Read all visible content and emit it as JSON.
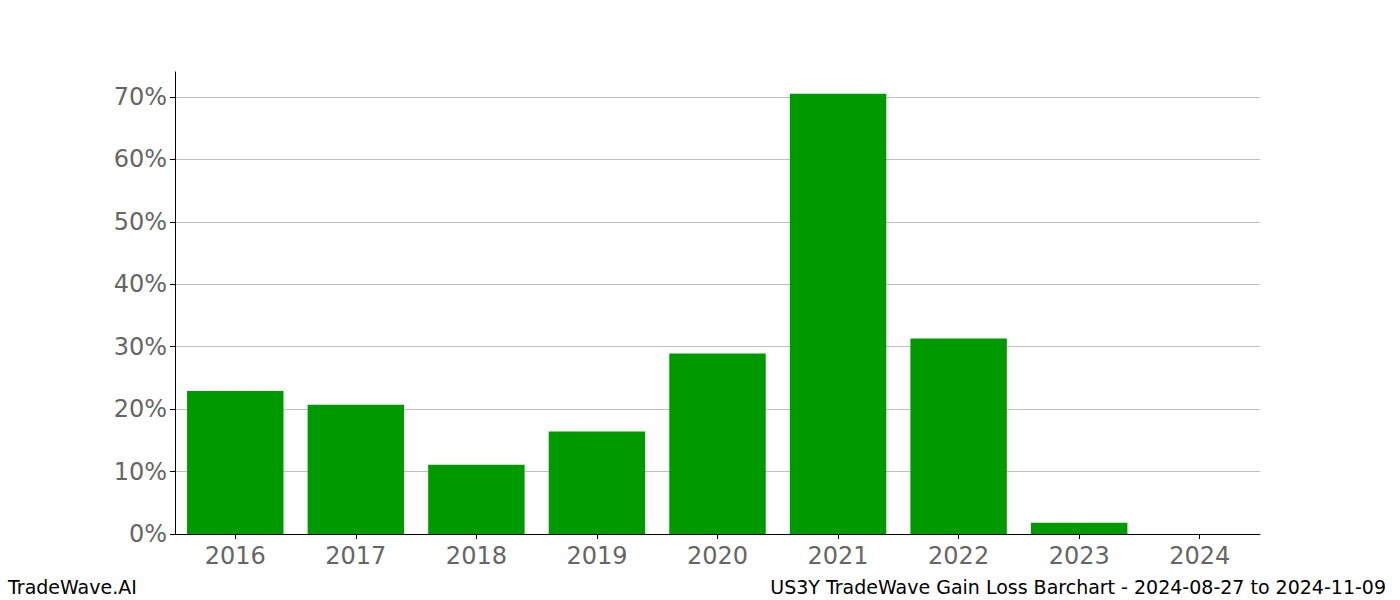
{
  "chart_data": {
    "type": "bar",
    "title": "US3Y TradeWave Gain Loss Barchart - 2024-08-27 to 2024-11-09",
    "annotations": [
      "TradeWave.AI"
    ],
    "categories": [
      "2016",
      "2017",
      "2018",
      "2019",
      "2020",
      "2021",
      "2022",
      "2023",
      "2024"
    ],
    "values": [
      22.9,
      20.7,
      11.1,
      16.4,
      28.9,
      70.5,
      31.3,
      1.8,
      0
    ],
    "color": "#009900",
    "ylim": [
      0,
      74
    ],
    "yticks": [
      {
        "value": 0,
        "label": "0%"
      },
      {
        "value": 10,
        "label": "10%"
      },
      {
        "value": 20,
        "label": "20%"
      },
      {
        "value": 30,
        "label": "30%"
      },
      {
        "value": 40,
        "label": "40%"
      },
      {
        "value": 50,
        "label": "50%"
      },
      {
        "value": 60,
        "label": "60%"
      },
      {
        "value": 70,
        "label": "70%"
      }
    ],
    "grid": true
  }
}
